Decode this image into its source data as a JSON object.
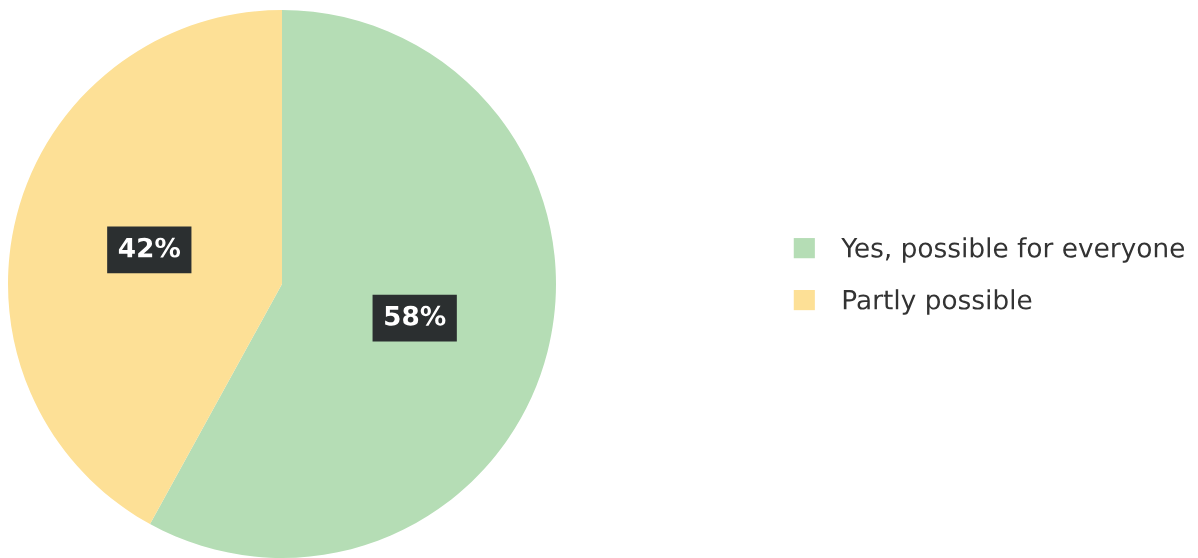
{
  "chart_data": {
    "type": "pie",
    "categories": [
      "Yes, possible for everyone",
      "Partly possible"
    ],
    "values": [
      58,
      42
    ],
    "colors": [
      "#b5ddb5",
      "#fde096"
    ],
    "value_labels": [
      "58%",
      "42%"
    ],
    "legend": "right"
  }
}
